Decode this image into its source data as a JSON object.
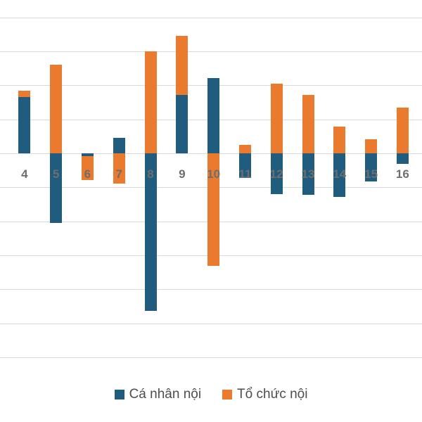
{
  "chart_data": {
    "type": "bar",
    "stacked": true,
    "title": "",
    "xlabel": "",
    "ylabel": "",
    "grid": true,
    "legend_position": "bottom",
    "y_axis_labels_visible": false,
    "value_unit": "gridline-interval",
    "ylim": [
      -6,
      4
    ],
    "categories": [
      "4",
      "5",
      "6",
      "7",
      "8",
      "9",
      "10",
      "11",
      "12",
      "13",
      "14",
      "15",
      "16"
    ],
    "series": [
      {
        "name": "Cá nhân nội",
        "color": "#1f5c7e",
        "values": [
          1.65,
          -2.05,
          -0.08,
          0.45,
          -4.63,
          1.71,
          2.22,
          -0.72,
          -1.2,
          -1.22,
          -1.28,
          -0.83,
          -0.31
        ]
      },
      {
        "name": "Tổ chức nội",
        "color": "#e97a2e",
        "values": [
          0.2,
          2.6,
          -0.7,
          -0.88,
          3.0,
          1.74,
          -3.31,
          0.25,
          2.06,
          1.71,
          0.79,
          0.41,
          1.35
        ]
      }
    ]
  },
  "colors": {
    "gridline": "#d9d9d9",
    "category_label": "#6e6e6e",
    "legend_text": "#4d4d4d",
    "background": "#ffffff"
  }
}
